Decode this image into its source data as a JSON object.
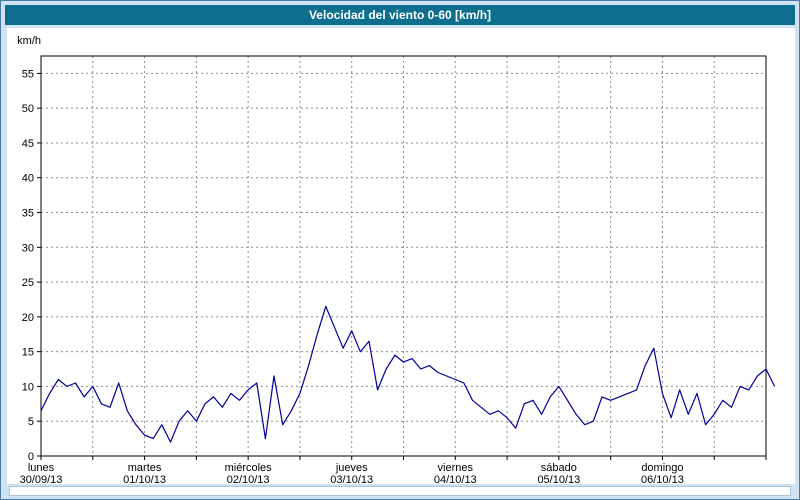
{
  "window": {
    "title": "Velocidad del viento 0-60 [km/h]",
    "title_bar_color": "#0d6f8d",
    "frame_color": "#cfe3f2"
  },
  "chart_data": {
    "type": "line",
    "title": "Velocidad del viento 0-60 [km/h]",
    "xlabel": "",
    "ylabel": "km/h",
    "ylim": [
      0,
      57.5
    ],
    "yticks": [
      0,
      5,
      10,
      15,
      20,
      25,
      30,
      35,
      40,
      45,
      50,
      55
    ],
    "x_hours_range": [
      0,
      168
    ],
    "x_interval_hours": 2,
    "x_gridline_every_hours": 12,
    "grid": "dashed",
    "grid_color": "#8c8c8c",
    "line_color": "#000099",
    "legend": "none",
    "days": [
      {
        "name": "lunes",
        "date": "30/09/13"
      },
      {
        "name": "martes",
        "date": "01/10/13"
      },
      {
        "name": "miércoles",
        "date": "02/10/13"
      },
      {
        "name": "jueves",
        "date": "03/10/13"
      },
      {
        "name": "viernes",
        "date": "04/10/13"
      },
      {
        "name": "sábado",
        "date": "05/10/13"
      },
      {
        "name": "domingo",
        "date": "06/10/13"
      }
    ],
    "values_kmh": [
      6.5,
      9,
      11,
      10,
      10.5,
      8.5,
      10,
      7.5,
      7,
      10.5,
      6.5,
      4.5,
      3,
      2.5,
      4.5,
      2,
      5,
      6.5,
      5,
      7.5,
      8.5,
      7,
      9,
      8,
      9.5,
      10.5,
      2.5,
      11.5,
      4.5,
      6.5,
      9,
      13,
      17.5,
      21.5,
      18.5,
      15.5,
      18,
      15,
      16.5,
      9.5,
      12.5,
      14.5,
      13.5,
      14,
      12.5,
      13,
      12,
      11.5,
      11,
      10.5,
      8,
      7,
      6,
      6.5,
      5.5,
      4,
      7.5,
      8,
      6,
      8.5,
      10,
      8,
      6,
      4.5,
      5,
      8.5,
      8,
      8.5,
      9,
      9.5,
      13,
      15.5,
      9,
      5.5,
      9.5,
      6,
      9,
      4.5,
      6,
      8,
      7,
      10,
      9.5,
      11.5,
      12.5,
      10
    ]
  }
}
